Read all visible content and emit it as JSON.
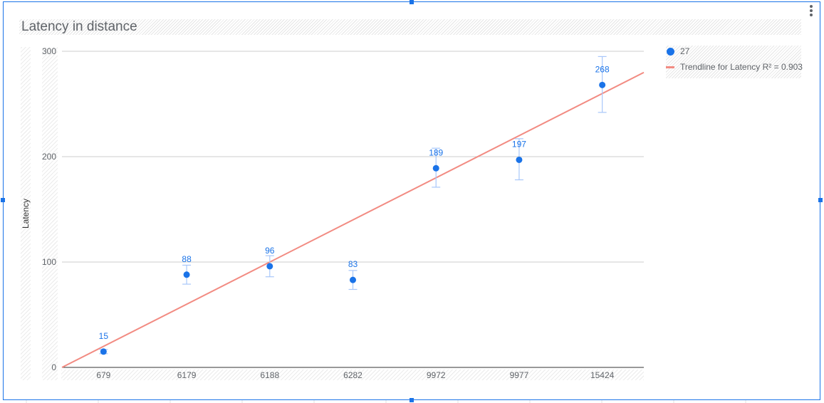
{
  "chart_data": {
    "type": "scatter",
    "title": "Latency in distance",
    "xlabel": "",
    "ylabel": "Latency",
    "categories": [
      "679",
      "6179",
      "6188",
      "6282",
      "9972",
      "9977",
      "15424"
    ],
    "series": [
      {
        "name": "27",
        "values": [
          15,
          88,
          96,
          83,
          189,
          197,
          268
        ],
        "labels": [
          "15",
          "88",
          "96",
          "83",
          "189",
          "197",
          "268"
        ],
        "error_low": [
          13,
          79,
          86,
          74,
          171,
          178,
          242
        ],
        "error_high": [
          17,
          97,
          106,
          92,
          208,
          217,
          295
        ],
        "color": "#1a73e8"
      }
    ],
    "trendline": {
      "label": "Trendline for Latency R² = 0.903",
      "start_value": 0,
      "end_value": 268,
      "color": "#f28b82"
    },
    "ylim": [
      0,
      300
    ],
    "yticks": [
      0,
      100,
      200,
      300
    ],
    "grid": true,
    "legend_position": "right"
  },
  "colors": {
    "selection": "#1a73e8",
    "point": "#1a73e8",
    "trendline": "#f28b82",
    "grid": "#cccccc",
    "text": "#5f6368"
  },
  "icons": {
    "menu": "more-vert-icon"
  }
}
